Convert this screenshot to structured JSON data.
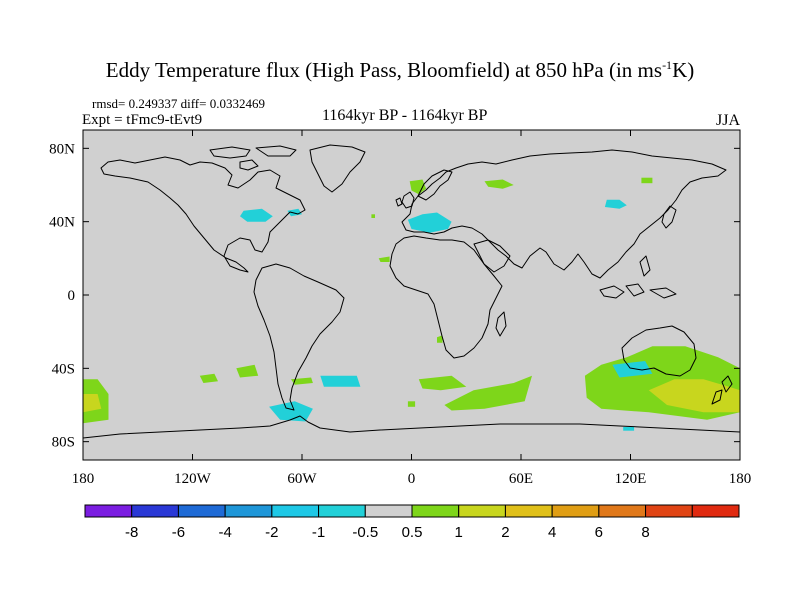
{
  "title": {
    "main": "Eddy Temperature flux (High Pass, Bloomfield) at 850 hPa (in ms",
    "sup": "-1",
    "end": "K)"
  },
  "subtitle": {
    "stats": "rmsd= 0.249337 diff= 0.0332469",
    "experiment": "Expt = tFmc9-tEvt9",
    "period": "1164kyr BP - 1164kyr BP",
    "season": "JJA"
  },
  "map": {
    "projection": "cylindrical equidistant",
    "lon_range": [
      -180,
      180
    ],
    "lat_range": [
      -90,
      90
    ],
    "background_color": "#d0d0d0",
    "lat_ticks": [
      {
        "lat": 80,
        "label": "80N"
      },
      {
        "lat": 40,
        "label": "40N"
      },
      {
        "lat": 0,
        "label": "0"
      },
      {
        "lat": -40,
        "label": "40S"
      },
      {
        "lat": -80,
        "label": "80S"
      }
    ],
    "lon_ticks": [
      {
        "lon": -180,
        "label": "180"
      },
      {
        "lon": -120,
        "label": "120W"
      },
      {
        "lon": -60,
        "label": "60W"
      },
      {
        "lon": 0,
        "label": "0"
      },
      {
        "lon": 60,
        "label": "60E"
      },
      {
        "lon": 120,
        "label": "120E"
      },
      {
        "lon": 180,
        "label": "180"
      }
    ],
    "anomaly_patches": [
      {
        "name": "patch-great-lakes",
        "color": "#22d0d8",
        "pts": [
          [
            -92,
            46
          ],
          [
            -82,
            47
          ],
          [
            -76,
            43
          ],
          [
            -80,
            40
          ],
          [
            -90,
            40
          ],
          [
            -94,
            43
          ]
        ]
      },
      {
        "name": "patch-nova-scotia",
        "color": "#22d0d8",
        "pts": [
          [
            -68,
            46
          ],
          [
            -62,
            47
          ],
          [
            -60,
            44
          ],
          [
            -66,
            43
          ]
        ]
      },
      {
        "name": "patch-north-sea",
        "color": "#7ed61a",
        "pts": [
          [
            -1,
            62
          ],
          [
            6,
            63
          ],
          [
            8,
            58
          ],
          [
            4,
            55
          ],
          [
            0,
            57
          ]
        ]
      },
      {
        "name": "patch-mediterranean",
        "color": "#22d0d8",
        "pts": [
          [
            -2,
            41
          ],
          [
            6,
            44
          ],
          [
            14,
            45
          ],
          [
            22,
            40
          ],
          [
            20,
            36
          ],
          [
            10,
            34
          ],
          [
            0,
            36
          ]
        ]
      },
      {
        "name": "patch-black-sea-area",
        "color": "#7ed61a",
        "pts": [
          [
            40,
            62
          ],
          [
            50,
            63
          ],
          [
            56,
            60
          ],
          [
            50,
            58
          ],
          [
            42,
            59
          ]
        ]
      },
      {
        "name": "patch-siberia-small",
        "color": "#7ed61a",
        "pts": [
          [
            126,
            64
          ],
          [
            132,
            64
          ],
          [
            132,
            61
          ],
          [
            126,
            61
          ]
        ]
      },
      {
        "name": "patch-central-asia",
        "color": "#22d0d8",
        "pts": [
          [
            107,
            52
          ],
          [
            114,
            52
          ],
          [
            118,
            49
          ],
          [
            114,
            47
          ],
          [
            106,
            48
          ]
        ]
      },
      {
        "name": "patch-west-africa",
        "color": "#7ed61a",
        "pts": [
          [
            -18,
            20
          ],
          [
            -12,
            21
          ],
          [
            -12,
            18
          ],
          [
            -17,
            18
          ]
        ]
      },
      {
        "name": "patch-atlantic-small",
        "color": "#7ed61a",
        "pts": [
          [
            -22,
            44
          ],
          [
            -20,
            44
          ],
          [
            -20,
            42
          ],
          [
            -22,
            42
          ]
        ]
      },
      {
        "name": "patch-angola",
        "color": "#7ed61a",
        "pts": [
          [
            14,
            -23
          ],
          [
            17,
            -22
          ],
          [
            17,
            -26
          ],
          [
            14,
            -26
          ]
        ]
      },
      {
        "name": "patch-south-pacific-a",
        "color": "#7ed61a",
        "pts": [
          [
            -116,
            -44
          ],
          [
            -108,
            -43
          ],
          [
            -106,
            -47
          ],
          [
            -114,
            -48
          ]
        ]
      },
      {
        "name": "patch-south-pacific-b",
        "color": "#7ed61a",
        "pts": [
          [
            -96,
            -40
          ],
          [
            -86,
            -38
          ],
          [
            -84,
            -44
          ],
          [
            -94,
            -45
          ]
        ]
      },
      {
        "name": "patch-drake-east",
        "color": "#22d0d8",
        "pts": [
          [
            -50,
            -44
          ],
          [
            -30,
            -44
          ],
          [
            -28,
            -50
          ],
          [
            -48,
            -50
          ]
        ]
      },
      {
        "name": "patch-south-atlantic-green",
        "color": "#7ed61a",
        "pts": [
          [
            -66,
            -46
          ],
          [
            -55,
            -45
          ],
          [
            -54,
            -48
          ],
          [
            -64,
            -49
          ]
        ]
      },
      {
        "name": "patch-weddell",
        "color": "#22d0d8",
        "pts": [
          [
            -78,
            -61
          ],
          [
            -64,
            -58
          ],
          [
            -54,
            -62
          ],
          [
            -58,
            -69
          ],
          [
            -72,
            -68
          ]
        ]
      },
      {
        "name": "patch-southern-ocean-a",
        "color": "#7ed61a",
        "pts": [
          [
            4,
            -46
          ],
          [
            22,
            -44
          ],
          [
            30,
            -50
          ],
          [
            16,
            -52
          ],
          [
            6,
            -51
          ]
        ]
      },
      {
        "name": "patch-southern-ocean-b",
        "color": "#7ed61a",
        "pts": [
          [
            18,
            -60
          ],
          [
            34,
            -52
          ],
          [
            56,
            -48
          ],
          [
            66,
            -44
          ],
          [
            62,
            -58
          ],
          [
            40,
            -62
          ],
          [
            22,
            -63
          ]
        ]
      },
      {
        "name": "patch-southern-ocean-c",
        "color": "#7ed61a",
        "pts": [
          [
            -2,
            -58
          ],
          [
            2,
            -58
          ],
          [
            2,
            -61
          ],
          [
            -2,
            -61
          ]
        ]
      },
      {
        "name": "patch-tasman",
        "color": "#7ed61a",
        "pts": [
          [
            95,
            -44
          ],
          [
            104,
            -38
          ],
          [
            118,
            -34
          ],
          [
            132,
            -28
          ],
          [
            150,
            -28
          ],
          [
            168,
            -34
          ],
          [
            180,
            -40
          ],
          [
            180,
            -64
          ],
          [
            162,
            -68
          ],
          [
            130,
            -64
          ],
          [
            104,
            -62
          ],
          [
            96,
            -56
          ]
        ]
      },
      {
        "name": "patch-tasman-yellow",
        "color": "#c8d61e",
        "pts": [
          [
            130,
            -52
          ],
          [
            144,
            -46
          ],
          [
            160,
            -46
          ],
          [
            174,
            -50
          ],
          [
            180,
            -52
          ],
          [
            180,
            -64
          ],
          [
            160,
            -64
          ],
          [
            140,
            -60
          ]
        ]
      },
      {
        "name": "patch-tasman-cyan",
        "color": "#22d0d8",
        "pts": [
          [
            110,
            -38
          ],
          [
            128,
            -36
          ],
          [
            132,
            -43
          ],
          [
            114,
            -45
          ]
        ]
      },
      {
        "name": "patch-dateline-west",
        "color": "#7ed61a",
        "pts": [
          [
            -180,
            -46
          ],
          [
            -172,
            -46
          ],
          [
            -166,
            -54
          ],
          [
            -166,
            -68
          ],
          [
            -180,
            -70
          ]
        ]
      },
      {
        "name": "patch-dateline-west-yellow",
        "color": "#c8d61e",
        "pts": [
          [
            -180,
            -54
          ],
          [
            -172,
            -54
          ],
          [
            -170,
            -62
          ],
          [
            -180,
            -64
          ]
        ]
      },
      {
        "name": "patch-antarctic-cyan",
        "color": "#22d0d8",
        "pts": [
          [
            116,
            -72
          ],
          [
            122,
            -72
          ],
          [
            122,
            -74
          ],
          [
            116,
            -74
          ]
        ]
      }
    ]
  },
  "colorbar": {
    "colors": [
      "#7b1de1",
      "#2a38d6",
      "#1e6ad6",
      "#1e96d8",
      "#1ec8e6",
      "#22d0d8",
      "#d0d0d0",
      "#7ed61a",
      "#c8d61e",
      "#e0c01a",
      "#e09e14",
      "#e0781a",
      "#e04414",
      "#e02a10"
    ],
    "labels": [
      "-8",
      "-6",
      "-4",
      "-2",
      "-1",
      "-0.5",
      "0.5",
      "1",
      "2",
      "4",
      "6",
      "8"
    ]
  }
}
